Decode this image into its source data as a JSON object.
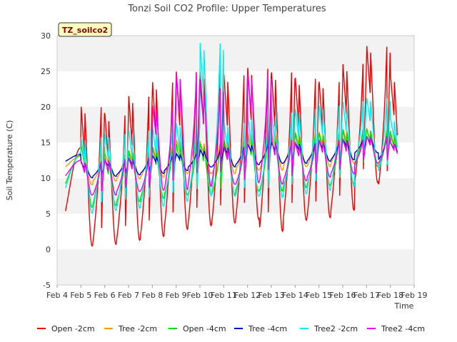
{
  "chart_data": {
    "type": "line",
    "title": "Tonzi Soil CO2 Profile: Upper Temperatures",
    "xlabel": "Time",
    "ylabel": "Soil Temperature (C)",
    "ylim": [
      -5,
      30
    ],
    "xlim": [
      4,
      19
    ],
    "yticks": [
      -5,
      0,
      5,
      10,
      15,
      20,
      25,
      30
    ],
    "xticks": [
      {
        "v": 4,
        "label": "Feb 4"
      },
      {
        "v": 5,
        "label": "Feb 5"
      },
      {
        "v": 6,
        "label": "Feb 6"
      },
      {
        "v": 7,
        "label": "Feb 7"
      },
      {
        "v": 8,
        "label": "Feb 8"
      },
      {
        "v": 9,
        "label": "Feb 9"
      },
      {
        "v": 10,
        "label": "Feb 10"
      },
      {
        "v": 11,
        "label": "Feb 11"
      },
      {
        "v": 12,
        "label": "Feb 12"
      },
      {
        "v": 13,
        "label": "Feb 13"
      },
      {
        "v": 14,
        "label": "Feb 14"
      },
      {
        "v": 15,
        "label": "Feb 15"
      },
      {
        "v": 16,
        "label": "Feb 16"
      },
      {
        "v": 17,
        "label": "Feb 17"
      },
      {
        "v": 18,
        "label": "Feb 18"
      },
      {
        "v": 19,
        "label": "Feb 19"
      }
    ],
    "grid": "horizontal bands",
    "annotation": "TZ_soilco2",
    "legend_position": "bottom",
    "x_start": 4.35,
    "x_end": 18.3,
    "daily_peak_day": [
      5.0,
      6.0,
      7.0,
      8.0,
      9.0,
      10.0,
      11.0,
      12.0,
      13.0,
      14.0,
      15.0,
      16.0,
      17.0,
      18.0
    ],
    "series": [
      {
        "name": "Open -2cm",
        "color": "#ee0000",
        "daily_max": [
          20.5,
          19.3,
          22.0,
          24.0,
          25.5,
          25.5,
          25.0,
          26.0,
          25.4,
          24.5,
          24.0,
          26.5,
          29.0,
          24.6
        ],
        "daily_min": [
          0.0,
          0.3,
          0.8,
          1.3,
          2.3,
          2.8,
          3.2,
          3.7,
          2.0,
          3.6,
          4.0,
          5.0,
          8.9,
          8.2
        ]
      },
      {
        "name": "Tree -2cm",
        "color": "#ff9900",
        "daily_max": [
          12.5,
          13.5,
          14.0,
          14.5,
          15.5,
          15.2,
          15.5,
          16.5,
          16.5,
          16.5,
          16.5,
          17.0,
          17.0,
          16.0
        ],
        "daily_min": [
          9.0,
          9.5,
          9.8,
          10.0,
          10.5,
          10.5,
          10.5,
          11.0,
          11.0,
          11.5,
          11.5,
          12.0,
          12.0,
          11.5
        ]
      },
      {
        "name": "Open -4cm",
        "color": "#00dd00",
        "daily_max": [
          15.0,
          13.0,
          14.0,
          14.5,
          15.0,
          15.0,
          15.5,
          16.0,
          16.0,
          16.5,
          16.5,
          17.0,
          17.0,
          16.5
        ],
        "daily_min": [
          5.7,
          6.0,
          6.5,
          7.0,
          7.5,
          7.5,
          7.5,
          8.0,
          8.0,
          8.5,
          8.8,
          9.0,
          11.5,
          11.0
        ]
      },
      {
        "name": "Tree -4cm",
        "color": "#0000cc",
        "daily_max": [
          12.2,
          12.5,
          12.8,
          13.2,
          13.5,
          14.0,
          14.5,
          14.8,
          15.0,
          15.0,
          15.2,
          15.5,
          15.8,
          15.0
        ],
        "daily_min": [
          10.0,
          10.2,
          10.4,
          10.6,
          11.0,
          11.5,
          11.5,
          11.8,
          12.0,
          12.0,
          12.3,
          12.5,
          13.5,
          12.5
        ]
      },
      {
        "name": "Tree2 -2cm",
        "color": "#00eeee",
        "daily_max": [
          16.0,
          16.5,
          17.0,
          17.5,
          18.0,
          29.5,
          18.0,
          19.0,
          19.5,
          20.0,
          20.5,
          21.0,
          21.5,
          18.5
        ],
        "daily_min": [
          4.8,
          5.2,
          5.5,
          5.8,
          6.5,
          7.0,
          7.2,
          7.2,
          7.0,
          7.5,
          8.0,
          8.5,
          11.5,
          10.5
        ]
      },
      {
        "name": "Tree2 -4cm",
        "color": "#ee00ee",
        "daily_max": [
          12.5,
          12.8,
          13.0,
          20.5,
          25.0,
          23.0,
          14.5,
          25.0,
          15.5,
          15.0,
          15.5,
          15.5,
          16.0,
          15.0
        ],
        "daily_min": [
          7.5,
          7.5,
          8.0,
          8.0,
          8.0,
          8.5,
          9.0,
          9.0,
          9.0,
          9.5,
          10.0,
          10.5,
          12.0,
          12.0
        ]
      }
    ]
  }
}
